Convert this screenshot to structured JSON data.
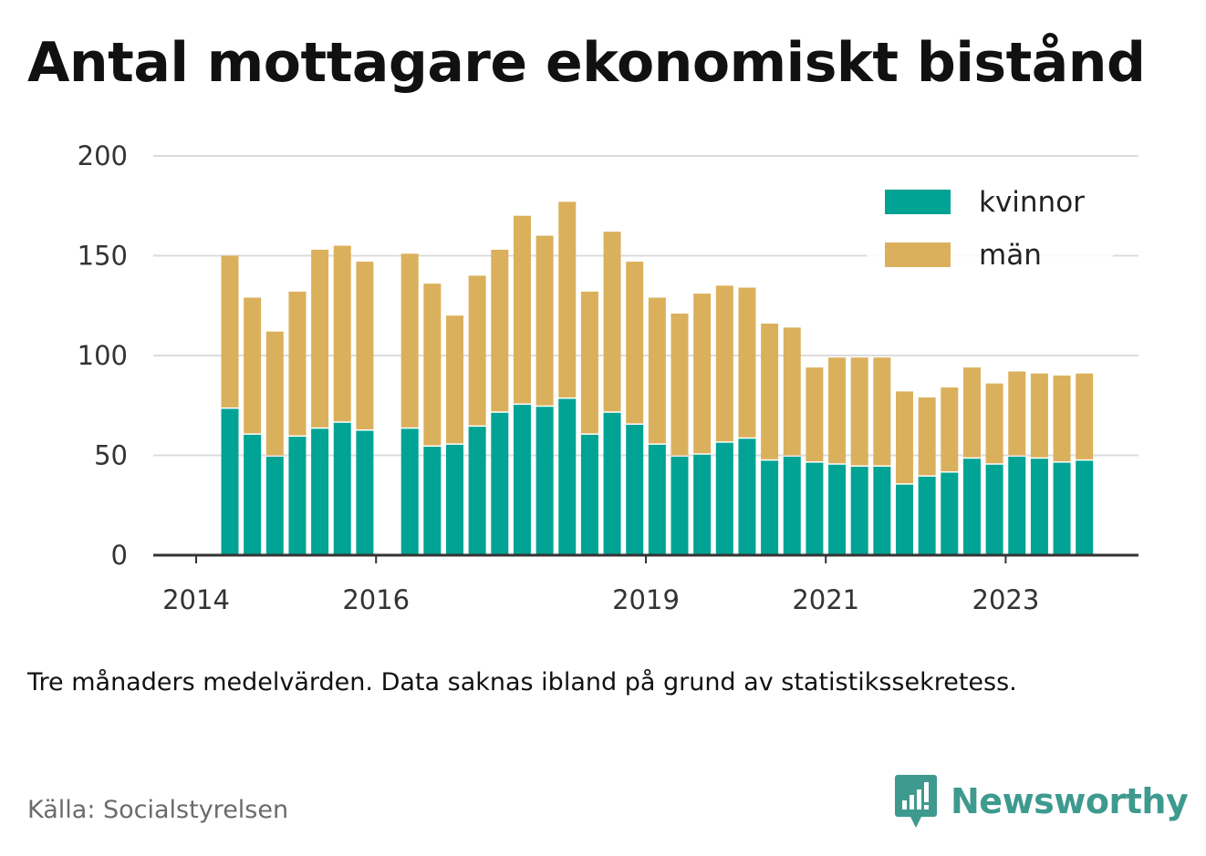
{
  "title": "Antal mottagare ekonomiskt bistånd",
  "note": "Tre månaders medelvärden. Data saknas ibland på grund av statistikssekretess.",
  "source": "Källa: Socialstyrelsen",
  "brand": {
    "name": "Newsworthy",
    "icon": "newsworthy-logo-icon",
    "color": "#3e9a8e"
  },
  "chart_data": {
    "type": "bar",
    "stacked": true,
    "categories": [
      "2014-Q2",
      "2014-Q3",
      "2014-Q4",
      "2015-Q1",
      "2015-Q2",
      "2015-Q3",
      "2015-Q4",
      "2016-Q1",
      "2016-Q2",
      "2016-Q3",
      "2016-Q4",
      "2017-Q1",
      "2017-Q2",
      "2017-Q3",
      "2017-Q4",
      "2018-Q1",
      "2018-Q2",
      "2018-Q3",
      "2018-Q4",
      "2019-Q1",
      "2019-Q2",
      "2019-Q3",
      "2019-Q4",
      "2020-Q1",
      "2020-Q2",
      "2020-Q3",
      "2020-Q4",
      "2021-Q1",
      "2021-Q2",
      "2021-Q3",
      "2021-Q4",
      "2022-Q1",
      "2022-Q2",
      "2022-Q3",
      "2022-Q4",
      "2023-Q1",
      "2023-Q2",
      "2023-Q3",
      "2023-Q4"
    ],
    "series": [
      {
        "name": "kvinnor",
        "color": "#00a394",
        "values": [
          74,
          61,
          50,
          60,
          64,
          67,
          63,
          null,
          64,
          55,
          56,
          65,
          72,
          76,
          75,
          79,
          61,
          72,
          66,
          56,
          50,
          51,
          57,
          59,
          48,
          50,
          47,
          46,
          45,
          45,
          36,
          40,
          42,
          49,
          46,
          50,
          49,
          47,
          48
        ]
      },
      {
        "name": "män",
        "color": "#dbb05c",
        "values": [
          76,
          68,
          62,
          72,
          89,
          88,
          84,
          null,
          87,
          81,
          64,
          75,
          81,
          94,
          85,
          98,
          71,
          90,
          81,
          73,
          71,
          80,
          78,
          75,
          68,
          64,
          47,
          53,
          54,
          54,
          46,
          39,
          42,
          45,
          40,
          42,
          42,
          43,
          43
        ]
      }
    ],
    "x_tick_labels": [
      {
        "category": "2014-Q1",
        "label": "2014"
      },
      {
        "category": "2016-Q1",
        "label": "2016"
      },
      {
        "category": "2019-Q1",
        "label": "2019"
      },
      {
        "category": "2021-Q1",
        "label": "2021"
      },
      {
        "category": "2023-Q1",
        "label": "2023"
      }
    ],
    "xlabel": "",
    "ylabel": "",
    "y_ticks": [
      0,
      50,
      100,
      150,
      200
    ],
    "ylim": [
      0,
      200
    ],
    "grid": true,
    "legend": "top-right"
  }
}
